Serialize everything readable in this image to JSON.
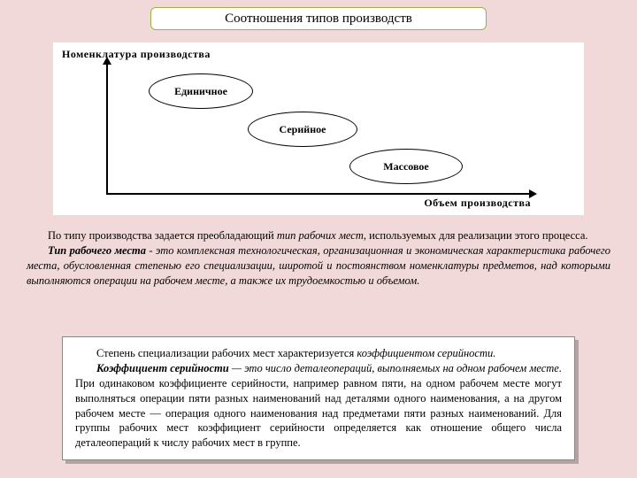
{
  "title": "Соотношения типов производств",
  "diagram": {
    "y_axis_label": "Номенклатура производства",
    "x_axis_label": "Объем производства",
    "nodes": [
      {
        "label": "Единичное"
      },
      {
        "label": "Серийное"
      },
      {
        "label": "Массовое"
      }
    ],
    "background_color": "#ffffff",
    "ellipse_border": "#000000"
  },
  "para1": {
    "lead": "По типу производства задается преобладающий ",
    "term1": "тип рабочих мест",
    "cont1": ", используемых для реализации этого процесса.",
    "term2": "Тип рабочего места",
    "body2": " - это комплексная технологическая, организационная и экономическая характеристика рабочего места, обусловленная степенью его специализации, широтой и постоянством номенклатуры предметов, над которыми выполняются операции на рабочем месте, а также их трудоемкостью и объемом."
  },
  "para2": {
    "s1a": "Степень специализации рабочих мест характеризуется ",
    "s1b": "коэффициентом серийности.",
    "s2a": "Коэффициент серийности",
    "s2b": " — это число деталеопераций, выполняемых на одном рабочем месте.",
    "s3": " При одинаковом коэффициенте серийности, например равном пяти, на одном рабочем месте могут выполняться операции пяти разных наименований над деталями одного наименования, а на другом рабочем месте — операция одного наименования над предметами пяти разных наименований. Для группы рабочих мест коэффициент серийности определяется как отношение общего числа деталеопераций к числу рабочих мест в группе."
  },
  "colors": {
    "page_bg": "#f2d9d9",
    "title_border": "#9bb24a"
  }
}
